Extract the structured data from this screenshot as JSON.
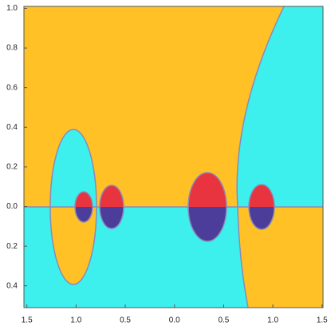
{
  "chart_data": {
    "type": "region",
    "xlim": [
      -1.53,
      1.51
    ],
    "ylim": [
      -0.51,
      1.01
    ],
    "xticks": [
      {
        "value": -1.5,
        "label": "1.5"
      },
      {
        "value": -1.0,
        "label": "1.0"
      },
      {
        "value": -0.5,
        "label": "0.5"
      },
      {
        "value": 0.0,
        "label": "0.0"
      },
      {
        "value": 0.5,
        "label": "0.5"
      },
      {
        "value": 1.0,
        "label": "1.0"
      },
      {
        "value": 1.5,
        "label": "1.5"
      }
    ],
    "yticks": [
      {
        "value": -0.4,
        "label": "0.4"
      },
      {
        "value": -0.2,
        "label": "0.2"
      },
      {
        "value": 0.0,
        "label": "0.0"
      },
      {
        "value": 0.2,
        "label": "0.2"
      },
      {
        "value": 0.4,
        "label": "0.4"
      },
      {
        "value": 0.6,
        "label": "0.6"
      },
      {
        "value": 0.8,
        "label": "0.8"
      },
      {
        "value": 1.0,
        "label": "1.0"
      }
    ]
  }
}
